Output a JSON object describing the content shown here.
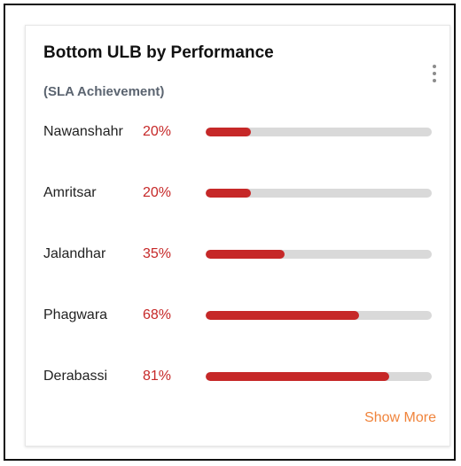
{
  "card": {
    "title": "Bottom ULB by Performance",
    "subtitle": "(SLA Achievement)",
    "menu_icon": "kebab-vertical-icon",
    "show_more_label": "Show More"
  },
  "colors": {
    "accent_red": "#c62828",
    "bar_track": "#d9d9d9",
    "link_orange": "#f0843c"
  },
  "rows": [
    {
      "name": "Nawanshahr",
      "percent_label": "20%",
      "value": 20
    },
    {
      "name": "Amritsar",
      "percent_label": "20%",
      "value": 20
    },
    {
      "name": "Jalandhar",
      "percent_label": "35%",
      "value": 35
    },
    {
      "name": "Phagwara",
      "percent_label": "68%",
      "value": 68
    },
    {
      "name": "Derabassi",
      "percent_label": "81%",
      "value": 81
    }
  ]
}
